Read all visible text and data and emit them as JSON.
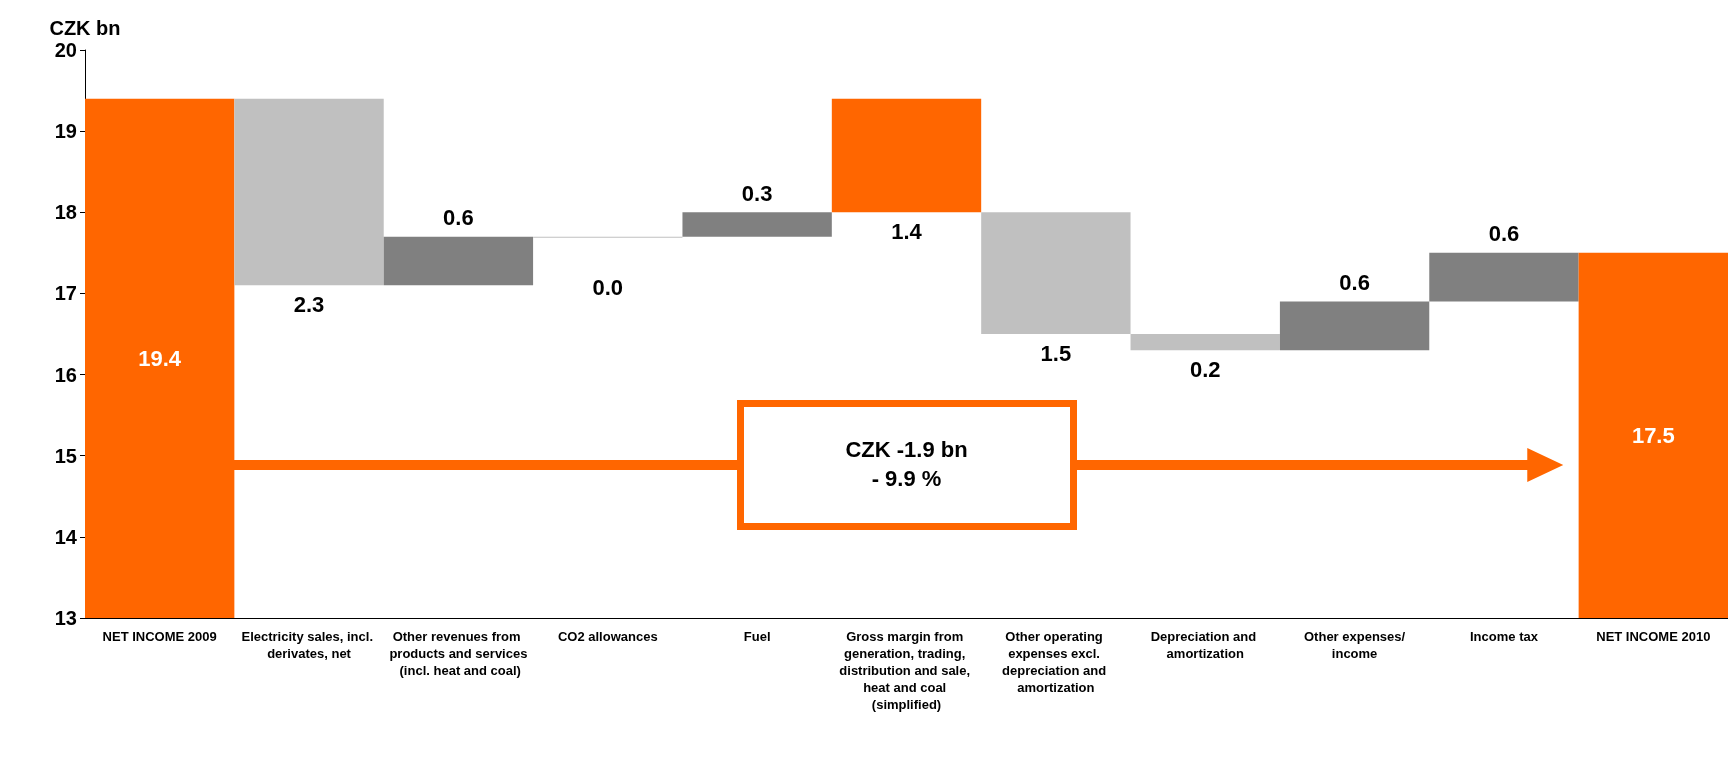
{
  "chart_data": {
    "type": "bar",
    "ylabel": "CZK bn",
    "categories": [
      "NET INCOME 2009",
      "Electricity sales, incl. derivates, net",
      "Other revenues from products and services (incl. heat and coal)",
      "CO2 allowances",
      "Fuel",
      "Gross margin from generation, trading, distribution and sale, heat and coal (simplified)",
      "Other operating expenses excl. depreciation and amortization",
      "Depreciation and amortization",
      "Other expenses/income",
      "Income tax",
      "NET INCOME 2010"
    ],
    "values": [
      19.4,
      -2.3,
      0.6,
      0.0,
      0.3,
      -1.4,
      -1.5,
      -0.2,
      0.6,
      0.6,
      17.5
    ],
    "base": [
      null,
      19.4,
      17.1,
      17.7,
      17.7,
      19.4,
      18.0,
      16.5,
      16.3,
      16.9,
      null
    ],
    "colors": [
      "#ff6600",
      "#c0c0c0",
      "#808080",
      "#c0c0c0",
      "#808080",
      "#ff6600",
      "#c0c0c0",
      "#c0c0c0",
      "#808080",
      "#808080",
      "#ff6600"
    ],
    "value_labels": [
      "19.4",
      "2.3",
      "0.6",
      "0.0",
      "0.3",
      "1.4",
      "1.5",
      "0.2",
      "0.6",
      "0.6",
      "17.5"
    ],
    "ylim": [
      13,
      20
    ],
    "yticks": [
      13,
      14,
      15,
      16,
      17,
      18,
      19,
      20
    ],
    "grid": false,
    "annotations": [
      "CZK -1.9 bn\n- 9.9 %"
    ]
  }
}
